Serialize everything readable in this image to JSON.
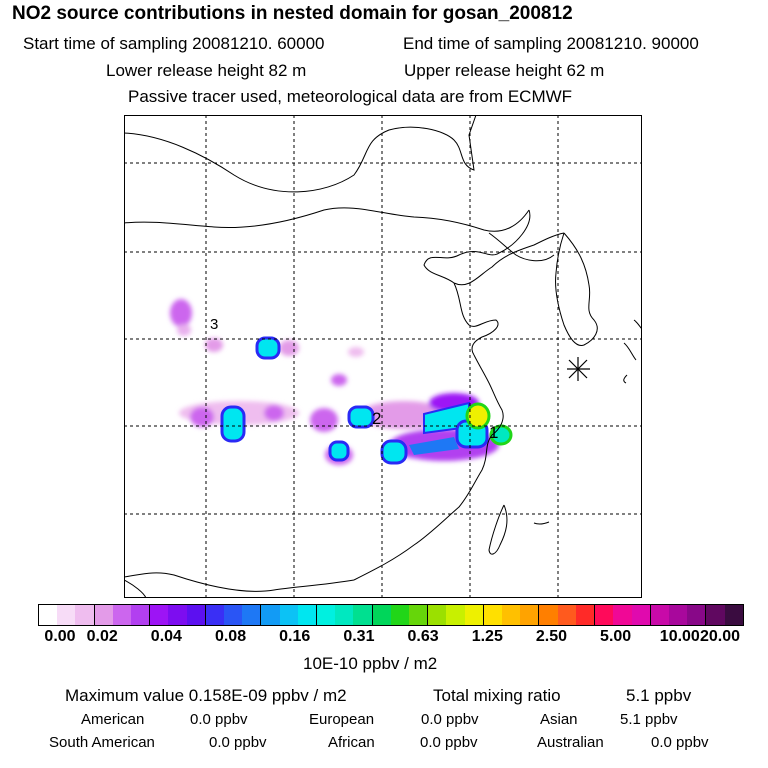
{
  "header": {
    "title": "NO2 source contributions in nested domain for gosan_200812",
    "start_label": "Start time of sampling 20081210. 60000",
    "end_label": "End time of sampling 20081210. 90000",
    "lower_label": "Lower release height   82 m",
    "upper_label": "Upper release height   62 m",
    "tracer_note": "Passive tracer used, meteorological data are from ECMWF"
  },
  "map": {
    "labels": [
      "3",
      "2",
      "1"
    ],
    "gridline_color": "#000000",
    "site_marker": "star-marker"
  },
  "colorbar": {
    "colors": [
      "#ffffff",
      "#f7dcf7",
      "#efbdef",
      "#e39be8",
      "#cc66ee",
      "#b23ff0",
      "#9d14f5",
      "#7d0df0",
      "#5c10f0",
      "#3a2ff5",
      "#2a55f5",
      "#1e78f5",
      "#129bf5",
      "#0cc2f5",
      "#00e6f0",
      "#00f0e0",
      "#00e8c0",
      "#00e090",
      "#00d65a",
      "#21d618",
      "#66d60a",
      "#9be000",
      "#c8f000",
      "#eef000",
      "#ffe000",
      "#ffc000",
      "#ffa300",
      "#ff7f00",
      "#ff5a1e",
      "#ff2a28",
      "#ff0a5a",
      "#f00896",
      "#e00aae",
      "#c80aa8",
      "#a8089c",
      "#880888",
      "#600860",
      "#3a0c40"
    ],
    "ticks": [
      "0.00",
      "0.02",
      "0.04",
      "0.08",
      "0.16",
      "0.31",
      "0.63",
      "1.25",
      "2.50",
      "5.00",
      "10.00",
      "20.00"
    ],
    "units": "10E-10 ppbv / m2"
  },
  "stats": {
    "max_label": "Maximum value  0.158E-09 ppbv / m2",
    "total_label": "Total mixing ratio",
    "total_value": "5.1 ppbv",
    "american_label": "American",
    "american_value": "0.0 ppbv",
    "european_label": "European",
    "european_value": "0.0 ppbv",
    "asian_label": "Asian",
    "asian_value": "5.1 ppbv",
    "south_american_label": "South American",
    "south_american_value": "0.0 ppbv",
    "african_label": "African",
    "african_value": "0.0 ppbv",
    "australian_label": "Australian",
    "australian_value": "0.0 ppbv"
  }
}
